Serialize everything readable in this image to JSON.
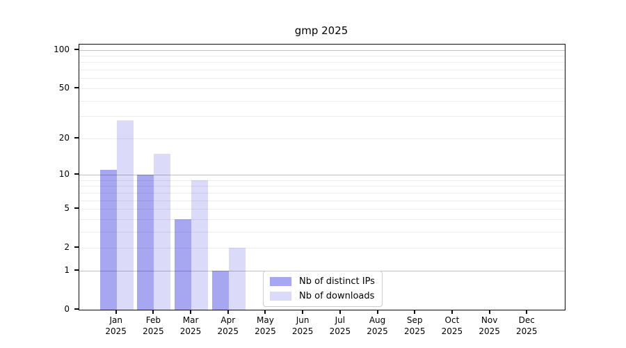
{
  "chart_data": {
    "type": "bar",
    "title": "gmp 2025",
    "categories": [
      "Jan 2025",
      "Feb 2025",
      "Mar 2025",
      "Apr 2025",
      "May 2025",
      "Jun 2025",
      "Jul 2025",
      "Aug 2025",
      "Sep 2025",
      "Oct 2025",
      "Nov 2025",
      "Dec 2025"
    ],
    "series": [
      {
        "name": "Nb of distinct IPs",
        "color": "#a6a6f1",
        "values": [
          11,
          10,
          4,
          1,
          0,
          0,
          0,
          0,
          0,
          0,
          0,
          0
        ]
      },
      {
        "name": "Nb of downloads",
        "color": "#dbdbf9",
        "values": [
          28,
          15,
          9,
          2,
          0,
          0,
          0,
          0,
          0,
          0,
          0,
          0
        ]
      }
    ],
    "xlabel": "",
    "ylabel": "",
    "yscale": "log1p",
    "ytick_labels": [
      "100",
      "50",
      "20",
      "10",
      "5",
      "2",
      "1",
      "0"
    ],
    "yticks": [
      100,
      50,
      20,
      10,
      5,
      2,
      1,
      0
    ],
    "ylim": [
      0,
      110
    ],
    "grid": "horizontal",
    "grid_major_at": [
      1,
      10,
      100
    ],
    "legend_position": "lower-center-inside",
    "bar_group_gap": 0
  },
  "colors": {
    "bar_distinct_ips": "#a6a6f1",
    "bar_downloads": "#dbdbf9",
    "axis": "#0a0a0a",
    "grid_minor": "#ececec",
    "grid_major": "#c2c2c2",
    "legend_border": "#cccccc",
    "background": "#ffffff"
  }
}
